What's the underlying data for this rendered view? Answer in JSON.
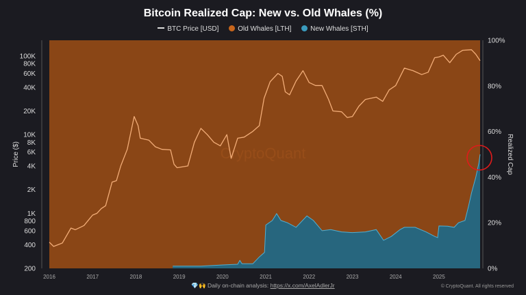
{
  "chart_data": {
    "type": "area",
    "title": "Bitcoin Realized Cap: New vs. Old Whales (%)",
    "ylabel_left": "Price ($)",
    "ylabel_right": "Realized Cap",
    "watermark": "CryptoQuant",
    "legend_position": "top-center",
    "legend": [
      {
        "name": "BTC Price [USD]",
        "color": "#dddddd",
        "marker": "line"
      },
      {
        "name": "Old Whales [LTH]",
        "color": "#c8661c",
        "marker": "dot"
      },
      {
        "name": "New Whales [STH]",
        "color": "#3a9bbd",
        "marker": "dot"
      }
    ],
    "x_ticks": [
      "2016",
      "2017",
      "2018",
      "2019",
      "2020",
      "2021",
      "2022",
      "2023",
      "2024",
      "2025"
    ],
    "x_range": [
      2016.0,
      2025.95
    ],
    "y_left_scale": "log",
    "y_left_range": [
      200,
      158000
    ],
    "y_left_ticks": [
      "100K",
      "80K",
      "60K",
      "40K",
      "20K",
      "10K",
      "8K",
      "6K",
      "4K",
      "2K",
      "1K",
      "800",
      "600",
      "400",
      "200"
    ],
    "y_left_tick_values": [
      100000,
      80000,
      60000,
      40000,
      20000,
      10000,
      8000,
      6000,
      4000,
      2000,
      1000,
      800,
      600,
      400,
      200
    ],
    "y_right_range": [
      0,
      100
    ],
    "y_right_ticks": [
      "100%",
      "80%",
      "60%",
      "40%",
      "20%",
      "0%"
    ],
    "y_right_tick_values": [
      100,
      80,
      60,
      40,
      20,
      0
    ],
    "colors": {
      "old_whales_fill": "#8a4616",
      "new_whales_fill": "#27667e",
      "new_whales_edge": "#4fb0d4",
      "price_line": "#f2ad78",
      "highlight_circle": "#e01b1b"
    },
    "series": [
      {
        "name": "BTC Price [USD]",
        "axis": "left",
        "x": [
          2016.0,
          2016.1,
          2016.3,
          2016.5,
          2016.6,
          2016.8,
          2017.0,
          2017.1,
          2017.2,
          2017.3,
          2017.45,
          2017.55,
          2017.65,
          2017.8,
          2017.96,
          2018.05,
          2018.1,
          2018.3,
          2018.45,
          2018.6,
          2018.8,
          2018.88,
          2018.95,
          2019.2,
          2019.35,
          2019.5,
          2019.65,
          2019.8,
          2019.95,
          2020.1,
          2020.2,
          2020.35,
          2020.5,
          2020.7,
          2020.85,
          2020.96,
          2021.1,
          2021.28,
          2021.38,
          2021.45,
          2021.55,
          2021.7,
          2021.86,
          2022.0,
          2022.15,
          2022.3,
          2022.45,
          2022.55,
          2022.75,
          2022.88,
          2023.0,
          2023.15,
          2023.3,
          2023.55,
          2023.7,
          2023.85,
          2024.0,
          2024.2,
          2024.4,
          2024.6,
          2024.75,
          2024.9,
          2025.0,
          2025.1,
          2025.25,
          2025.4,
          2025.55,
          2025.75,
          2025.85,
          2025.95
        ],
        "y": [
          430,
          380,
          420,
          650,
          620,
          700,
          950,
          1000,
          1150,
          1250,
          2500,
          2600,
          4000,
          6500,
          17000,
          13000,
          9000,
          8500,
          7000,
          6500,
          6400,
          4200,
          3800,
          4000,
          8000,
          12000,
          10000,
          8000,
          7200,
          10000,
          5000,
          9000,
          9300,
          11000,
          13000,
          29000,
          47000,
          60000,
          55000,
          35000,
          32000,
          48000,
          65000,
          46000,
          42000,
          42000,
          28000,
          20000,
          19500,
          16500,
          17000,
          23000,
          28000,
          30000,
          26500,
          37000,
          42000,
          70000,
          65000,
          58000,
          62000,
          95000,
          97000,
          102000,
          82000,
          105000,
          118000,
          120000,
          105000,
          87000
        ]
      },
      {
        "name": "New Whales [STH]",
        "axis": "right",
        "unit": "%",
        "x": [
          2018.85,
          2019.5,
          2020.0,
          2020.35,
          2020.4,
          2020.45,
          2020.7,
          2020.85,
          2020.97,
          2021.0,
          2021.15,
          2021.25,
          2021.35,
          2021.5,
          2021.7,
          2021.95,
          2022.1,
          2022.3,
          2022.5,
          2022.75,
          2023.0,
          2023.3,
          2023.55,
          2023.72,
          2023.9,
          2024.1,
          2024.2,
          2024.45,
          2024.7,
          2024.9,
          2024.97,
          2025.0,
          2025.2,
          2025.35,
          2025.45,
          2025.6,
          2025.68,
          2025.75,
          2025.85,
          2025.92,
          2025.95
        ],
        "y": [
          1,
          1,
          1.5,
          1.8,
          3.5,
          2,
          2,
          5,
          7,
          19,
          21,
          24,
          21,
          20,
          18,
          23,
          21,
          16.5,
          17,
          16,
          15.7,
          16,
          17,
          12.3,
          14,
          17,
          18,
          18,
          16,
          14,
          13.5,
          18.6,
          18.5,
          18,
          20,
          21,
          27,
          33,
          40,
          46,
          50
        ]
      }
    ]
  },
  "footer": {
    "emoji": "💎🙌",
    "text": "Daily on-chain analysis: ",
    "link": "https://x.com/AxelAdlerJr",
    "copyright": "© CryptoQuant. All rights reserved"
  }
}
